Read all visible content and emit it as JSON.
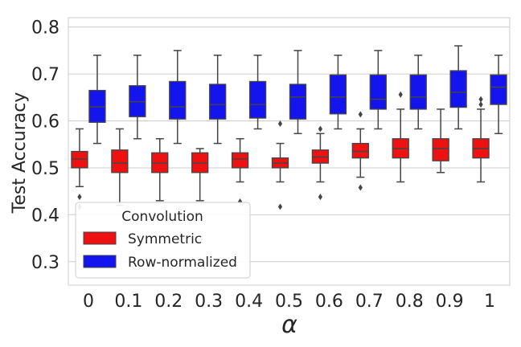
{
  "chart_data": {
    "type": "boxplot",
    "xlabel": "α",
    "ylabel": "Test Accuracy",
    "ylim": [
      0.25,
      0.82
    ],
    "yticks": [
      0.3,
      0.4,
      0.5,
      0.6,
      0.7,
      0.8
    ],
    "ytick_labels": [
      "0.3",
      "0.4",
      "0.5",
      "0.6",
      "0.7",
      "0.8"
    ],
    "categories": [
      "0",
      "0.1",
      "0.2",
      "0.3",
      "0.4",
      "0.5",
      "0.6",
      "0.7",
      "0.8",
      "0.9",
      "1"
    ],
    "grid": "horizontal",
    "legend": {
      "title": "Convolution",
      "placement": "lower-left",
      "entries": [
        "Symmetric",
        "Row-normalized"
      ]
    },
    "series": [
      {
        "name": "Symmetric",
        "color": "#ee1111",
        "boxes": [
          {
            "whislo": 0.46,
            "q1": 0.5,
            "med": 0.519,
            "q3": 0.535,
            "whishi": 0.583,
            "fliers": [
              0.438,
              0.417
            ]
          },
          {
            "whislo": 0.42,
            "q1": 0.49,
            "med": 0.51,
            "q3": 0.538,
            "whishi": 0.583,
            "fliers": []
          },
          {
            "whislo": 0.43,
            "q1": 0.49,
            "med": 0.51,
            "q3": 0.532,
            "whishi": 0.562,
            "fliers": []
          },
          {
            "whislo": 0.43,
            "q1": 0.49,
            "med": 0.51,
            "q3": 0.532,
            "whishi": 0.541,
            "fliers": []
          },
          {
            "whislo": 0.47,
            "q1": 0.5,
            "med": 0.519,
            "q3": 0.532,
            "whishi": 0.562,
            "fliers": [
              0.428
            ]
          },
          {
            "whislo": 0.47,
            "q1": 0.5,
            "med": 0.51,
            "q3": 0.521,
            "whishi": 0.552,
            "fliers": [
              0.594,
              0.417
            ]
          },
          {
            "whislo": 0.47,
            "q1": 0.51,
            "med": 0.523,
            "q3": 0.538,
            "whishi": 0.573,
            "fliers": [
              0.583,
              0.438
            ]
          },
          {
            "whislo": 0.48,
            "q1": 0.521,
            "med": 0.535,
            "q3": 0.552,
            "whishi": 0.583,
            "fliers": [
              0.614,
              0.458
            ]
          },
          {
            "whislo": 0.47,
            "q1": 0.521,
            "med": 0.541,
            "q3": 0.562,
            "whishi": 0.625,
            "fliers": [
              0.656
            ]
          },
          {
            "whislo": 0.49,
            "q1": 0.515,
            "med": 0.541,
            "q3": 0.562,
            "whishi": 0.625,
            "fliers": []
          },
          {
            "whislo": 0.47,
            "q1": 0.521,
            "med": 0.541,
            "q3": 0.562,
            "whishi": 0.625,
            "fliers": [
              0.646,
              0.635
            ]
          }
        ]
      },
      {
        "name": "Row-normalized",
        "color": "#1414ee",
        "boxes": [
          {
            "whislo": 0.552,
            "q1": 0.597,
            "med": 0.63,
            "q3": 0.665,
            "whishi": 0.74,
            "fliers": []
          },
          {
            "whislo": 0.562,
            "q1": 0.609,
            "med": 0.641,
            "q3": 0.675,
            "whishi": 0.74,
            "fliers": []
          },
          {
            "whislo": 0.552,
            "q1": 0.604,
            "med": 0.63,
            "q3": 0.684,
            "whishi": 0.75,
            "fliers": []
          },
          {
            "whislo": 0.552,
            "q1": 0.604,
            "med": 0.635,
            "q3": 0.678,
            "whishi": 0.74,
            "fliers": []
          },
          {
            "whislo": 0.583,
            "q1": 0.606,
            "med": 0.635,
            "q3": 0.684,
            "whishi": 0.74,
            "fliers": []
          },
          {
            "whislo": 0.573,
            "q1": 0.604,
            "med": 0.651,
            "q3": 0.678,
            "whishi": 0.75,
            "fliers": []
          },
          {
            "whislo": 0.583,
            "q1": 0.615,
            "med": 0.651,
            "q3": 0.698,
            "whishi": 0.74,
            "fliers": []
          },
          {
            "whislo": 0.583,
            "q1": 0.625,
            "med": 0.646,
            "q3": 0.698,
            "whishi": 0.75,
            "fliers": []
          },
          {
            "whislo": 0.583,
            "q1": 0.625,
            "med": 0.651,
            "q3": 0.698,
            "whishi": 0.74,
            "fliers": []
          },
          {
            "whislo": 0.583,
            "q1": 0.629,
            "med": 0.661,
            "q3": 0.707,
            "whishi": 0.76,
            "fliers": []
          },
          {
            "whislo": 0.573,
            "q1": 0.635,
            "med": 0.672,
            "q3": 0.698,
            "whishi": 0.74,
            "fliers": []
          }
        ]
      }
    ]
  }
}
